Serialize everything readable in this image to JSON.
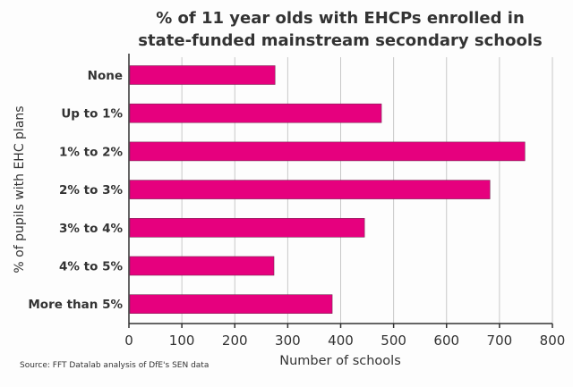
{
  "chart_data": {
    "type": "bar",
    "orientation": "horizontal",
    "title": "% of 11 year olds with EHCPs enrolled in state-funded mainstream secondary schools",
    "title_lines": [
      "% of 11 year olds with EHCPs enrolled in",
      "state-funded mainstream secondary schools"
    ],
    "xlabel": "Number of schools",
    "ylabel": "% of pupils with EHC plans",
    "categories": [
      "None",
      "Up to 1%",
      "1% to 2%",
      "2% to 3%",
      "3% to 4%",
      "4% to 5%",
      "More than 5%"
    ],
    "values": [
      276,
      477,
      748,
      682,
      445,
      274,
      384
    ],
    "xlim": [
      0,
      800
    ],
    "xticks": [
      "0",
      "100",
      "200",
      "300",
      "400",
      "500",
      "600",
      "700",
      "800"
    ],
    "grid": "vertical",
    "bar_color": "#e6007e",
    "source": "Source: FFT Datalab analysis of DfE's SEN data"
  }
}
